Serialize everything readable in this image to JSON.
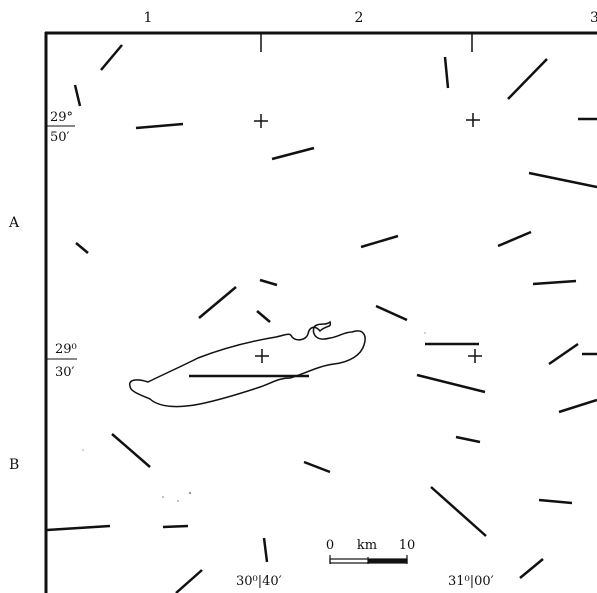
{
  "grid": {
    "columns": [
      "1",
      "2",
      "3"
    ],
    "rows": [
      "A",
      "B"
    ]
  },
  "latitudes": {
    "top": {
      "deg": "29°",
      "min": "50′"
    },
    "mid": {
      "deg": "29⁰",
      "min": "30′"
    }
  },
  "longitudes": {
    "left": {
      "deg": "30⁰",
      "min": "40′"
    },
    "right": {
      "deg": "31⁰",
      "min": "00′"
    }
  },
  "scale_bar": {
    "start": "0",
    "unit": "km",
    "end": "10"
  },
  "colors": {
    "ink": "#111111",
    "background": "#ffffff"
  },
  "icons": [
    "graticule-cross-icon"
  ]
}
